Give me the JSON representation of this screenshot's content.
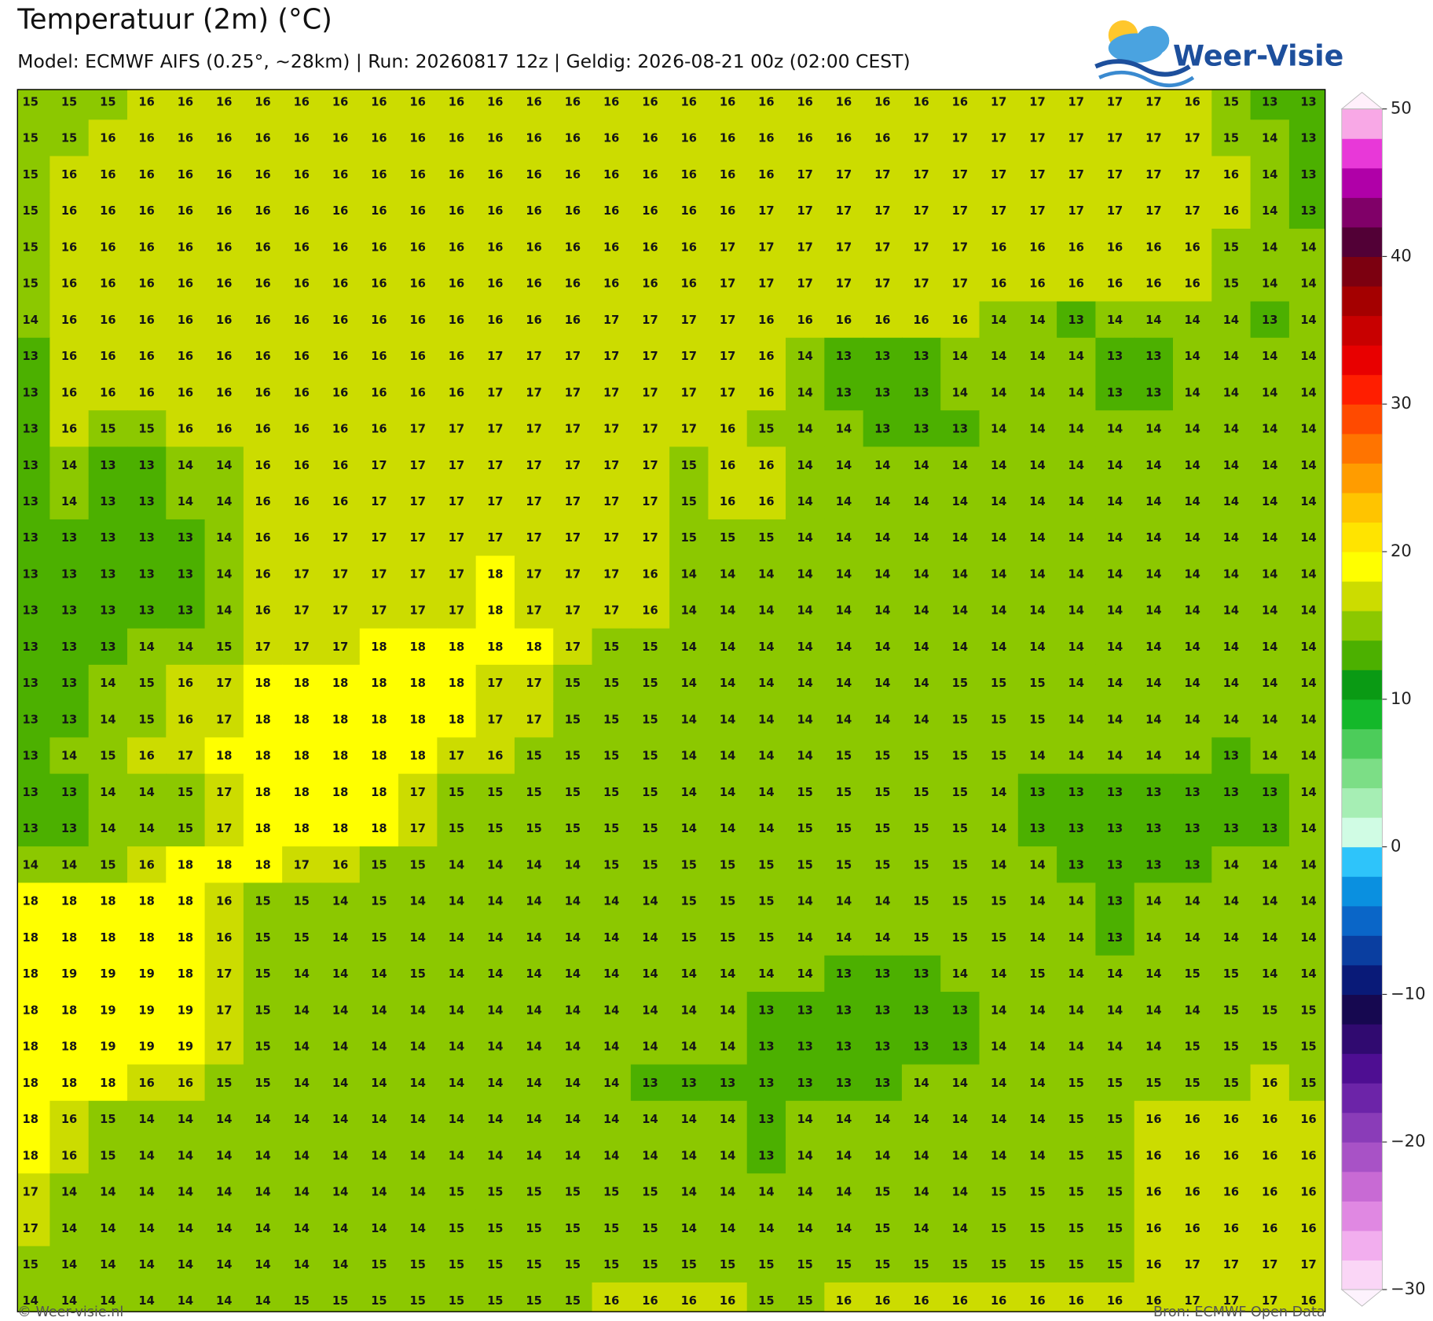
{
  "header": {
    "title": "Temperatuur (2m) (°C)",
    "subtitle": "Model: ECMWF AIFS (0.25°, ~28km)  |  Run: 20260817 12z  |  Geldig: 2026-08-21 00z (02:00 CEST)"
  },
  "logo": {
    "name": "Weer-Visie"
  },
  "map": {
    "rows": [
      [
        15,
        15,
        15,
        16,
        16,
        16,
        16,
        16,
        16,
        16,
        16,
        16,
        16,
        16,
        16,
        16,
        16,
        16,
        16,
        16,
        16,
        16,
        16,
        16,
        16,
        17,
        17,
        17,
        17,
        17,
        16,
        15,
        13,
        13
      ],
      [
        15,
        15,
        16,
        16,
        16,
        16,
        16,
        16,
        16,
        16,
        16,
        16,
        16,
        16,
        16,
        16,
        16,
        16,
        16,
        16,
        16,
        16,
        16,
        17,
        17,
        17,
        17,
        17,
        17,
        17,
        17,
        15,
        14,
        13
      ],
      [
        15,
        16,
        16,
        16,
        16,
        16,
        16,
        16,
        16,
        16,
        16,
        16,
        16,
        16,
        16,
        16,
        16,
        16,
        16,
        16,
        17,
        17,
        17,
        17,
        17,
        17,
        17,
        17,
        17,
        17,
        17,
        16,
        14,
        13
      ],
      [
        15,
        16,
        16,
        16,
        16,
        16,
        16,
        16,
        16,
        16,
        16,
        16,
        16,
        16,
        16,
        16,
        16,
        16,
        16,
        17,
        17,
        17,
        17,
        17,
        17,
        17,
        17,
        17,
        17,
        17,
        17,
        16,
        14,
        13
      ],
      [
        15,
        16,
        16,
        16,
        16,
        16,
        16,
        16,
        16,
        16,
        16,
        16,
        16,
        16,
        16,
        16,
        16,
        16,
        17,
        17,
        17,
        17,
        17,
        17,
        17,
        16,
        16,
        16,
        16,
        16,
        16,
        15,
        14,
        14
      ],
      [
        15,
        16,
        16,
        16,
        16,
        16,
        16,
        16,
        16,
        16,
        16,
        16,
        16,
        16,
        16,
        16,
        16,
        16,
        17,
        17,
        17,
        17,
        17,
        17,
        17,
        16,
        16,
        16,
        16,
        16,
        16,
        15,
        14,
        14
      ],
      [
        14,
        16,
        16,
        16,
        16,
        16,
        16,
        16,
        16,
        16,
        16,
        16,
        16,
        16,
        16,
        17,
        17,
        17,
        17,
        16,
        16,
        16,
        16,
        16,
        16,
        14,
        14,
        13,
        14,
        14,
        14,
        14,
        13,
        14
      ],
      [
        13,
        16,
        16,
        16,
        16,
        16,
        16,
        16,
        16,
        16,
        16,
        16,
        17,
        17,
        17,
        17,
        17,
        17,
        17,
        16,
        14,
        13,
        13,
        13,
        14,
        14,
        14,
        14,
        13,
        13,
        14,
        14,
        14,
        14
      ],
      [
        13,
        16,
        16,
        16,
        16,
        16,
        16,
        16,
        16,
        16,
        16,
        16,
        17,
        17,
        17,
        17,
        17,
        17,
        17,
        16,
        14,
        13,
        13,
        13,
        14,
        14,
        14,
        14,
        13,
        13,
        14,
        14,
        14,
        14
      ],
      [
        13,
        16,
        15,
        15,
        16,
        16,
        16,
        16,
        16,
        16,
        17,
        17,
        17,
        17,
        17,
        17,
        17,
        17,
        16,
        15,
        14,
        14,
        13,
        13,
        13,
        14,
        14,
        14,
        14,
        14,
        14,
        14,
        14,
        14
      ],
      [
        13,
        14,
        13,
        13,
        14,
        14,
        16,
        16,
        16,
        17,
        17,
        17,
        17,
        17,
        17,
        17,
        17,
        15,
        16,
        16,
        14,
        14,
        14,
        14,
        14,
        14,
        14,
        14,
        14,
        14,
        14,
        14,
        14,
        14
      ],
      [
        13,
        14,
        13,
        13,
        14,
        14,
        16,
        16,
        16,
        17,
        17,
        17,
        17,
        17,
        17,
        17,
        17,
        15,
        16,
        16,
        14,
        14,
        14,
        14,
        14,
        14,
        14,
        14,
        14,
        14,
        14,
        14,
        14,
        14
      ],
      [
        13,
        13,
        13,
        13,
        13,
        14,
        16,
        16,
        17,
        17,
        17,
        17,
        17,
        17,
        17,
        17,
        17,
        15,
        15,
        15,
        14,
        14,
        14,
        14,
        14,
        14,
        14,
        14,
        14,
        14,
        14,
        14,
        14,
        14
      ],
      [
        13,
        13,
        13,
        13,
        13,
        14,
        16,
        17,
        17,
        17,
        17,
        17,
        18,
        17,
        17,
        17,
        16,
        14,
        14,
        14,
        14,
        14,
        14,
        14,
        14,
        14,
        14,
        14,
        14,
        14,
        14,
        14,
        14,
        14
      ],
      [
        13,
        13,
        13,
        13,
        13,
        14,
        16,
        17,
        17,
        17,
        17,
        17,
        18,
        17,
        17,
        17,
        16,
        14,
        14,
        14,
        14,
        14,
        14,
        14,
        14,
        14,
        14,
        14,
        14,
        14,
        14,
        14,
        14,
        14
      ],
      [
        13,
        13,
        13,
        14,
        14,
        15,
        17,
        17,
        17,
        18,
        18,
        18,
        18,
        18,
        17,
        15,
        15,
        14,
        14,
        14,
        14,
        14,
        14,
        14,
        14,
        14,
        14,
        14,
        14,
        14,
        14,
        14,
        14,
        14
      ],
      [
        13,
        13,
        14,
        15,
        16,
        17,
        18,
        18,
        18,
        18,
        18,
        18,
        17,
        17,
        15,
        15,
        15,
        14,
        14,
        14,
        14,
        14,
        14,
        14,
        15,
        15,
        15,
        14,
        14,
        14,
        14,
        14,
        14,
        14
      ],
      [
        13,
        13,
        14,
        15,
        16,
        17,
        18,
        18,
        18,
        18,
        18,
        18,
        17,
        17,
        15,
        15,
        15,
        14,
        14,
        14,
        14,
        14,
        14,
        14,
        15,
        15,
        15,
        14,
        14,
        14,
        14,
        14,
        14,
        14
      ],
      [
        13,
        14,
        15,
        16,
        17,
        18,
        18,
        18,
        18,
        18,
        18,
        17,
        16,
        15,
        15,
        15,
        15,
        14,
        14,
        14,
        14,
        15,
        15,
        15,
        15,
        15,
        14,
        14,
        14,
        14,
        14,
        13,
        14,
        14
      ],
      [
        13,
        13,
        14,
        14,
        15,
        17,
        18,
        18,
        18,
        18,
        17,
        15,
        15,
        15,
        15,
        15,
        15,
        14,
        14,
        14,
        15,
        15,
        15,
        15,
        15,
        14,
        13,
        13,
        13,
        13,
        13,
        13,
        13,
        14
      ],
      [
        13,
        13,
        14,
        14,
        15,
        17,
        18,
        18,
        18,
        18,
        17,
        15,
        15,
        15,
        15,
        15,
        15,
        14,
        14,
        14,
        15,
        15,
        15,
        15,
        15,
        14,
        13,
        13,
        13,
        13,
        13,
        13,
        13,
        14
      ],
      [
        14,
        14,
        15,
        16,
        18,
        18,
        18,
        17,
        16,
        15,
        15,
        14,
        14,
        14,
        14,
        15,
        15,
        15,
        15,
        15,
        15,
        15,
        15,
        15,
        15,
        14,
        14,
        13,
        13,
        13,
        13,
        14,
        14,
        14
      ],
      [
        18,
        18,
        18,
        18,
        18,
        16,
        15,
        15,
        14,
        15,
        14,
        14,
        14,
        14,
        14,
        14,
        14,
        15,
        15,
        15,
        14,
        14,
        14,
        15,
        15,
        15,
        14,
        14,
        13,
        14,
        14,
        14,
        14,
        14
      ],
      [
        18,
        18,
        18,
        18,
        18,
        16,
        15,
        15,
        14,
        15,
        14,
        14,
        14,
        14,
        14,
        14,
        14,
        15,
        15,
        15,
        14,
        14,
        14,
        15,
        15,
        15,
        14,
        14,
        13,
        14,
        14,
        14,
        14,
        14
      ],
      [
        18,
        19,
        19,
        19,
        18,
        17,
        15,
        14,
        14,
        14,
        15,
        14,
        14,
        14,
        14,
        14,
        14,
        14,
        14,
        14,
        14,
        13,
        13,
        13,
        14,
        14,
        15,
        14,
        14,
        14,
        15,
        15,
        14,
        14
      ],
      [
        18,
        18,
        19,
        19,
        19,
        17,
        15,
        14,
        14,
        14,
        14,
        14,
        14,
        14,
        14,
        14,
        14,
        14,
        14,
        13,
        13,
        13,
        13,
        13,
        13,
        14,
        14,
        14,
        14,
        14,
        14,
        15,
        15,
        15
      ],
      [
        18,
        18,
        19,
        19,
        19,
        17,
        15,
        14,
        14,
        14,
        14,
        14,
        14,
        14,
        14,
        14,
        14,
        14,
        14,
        13,
        13,
        13,
        13,
        13,
        13,
        14,
        14,
        14,
        14,
        14,
        15,
        15,
        15,
        15
      ],
      [
        18,
        18,
        18,
        16,
        16,
        15,
        15,
        14,
        14,
        14,
        14,
        14,
        14,
        14,
        14,
        14,
        13,
        13,
        13,
        13,
        13,
        13,
        13,
        14,
        14,
        14,
        14,
        15,
        15,
        15,
        15,
        15,
        16,
        15
      ],
      [
        18,
        16,
        15,
        14,
        14,
        14,
        14,
        14,
        14,
        14,
        14,
        14,
        14,
        14,
        14,
        14,
        14,
        14,
        14,
        13,
        14,
        14,
        14,
        14,
        14,
        14,
        14,
        15,
        15,
        16,
        16,
        16,
        16,
        16
      ],
      [
        18,
        16,
        15,
        14,
        14,
        14,
        14,
        14,
        14,
        14,
        14,
        14,
        14,
        14,
        14,
        14,
        14,
        14,
        14,
        13,
        14,
        14,
        14,
        14,
        14,
        14,
        14,
        15,
        15,
        16,
        16,
        16,
        16,
        16
      ],
      [
        17,
        14,
        14,
        14,
        14,
        14,
        14,
        14,
        14,
        14,
        14,
        15,
        15,
        15,
        15,
        15,
        15,
        14,
        14,
        14,
        14,
        14,
        15,
        14,
        14,
        15,
        15,
        15,
        15,
        16,
        16,
        16,
        16,
        16
      ],
      [
        17,
        14,
        14,
        14,
        14,
        14,
        14,
        14,
        14,
        14,
        14,
        15,
        15,
        15,
        15,
        15,
        15,
        14,
        14,
        14,
        14,
        14,
        15,
        14,
        14,
        15,
        15,
        15,
        15,
        16,
        16,
        16,
        16,
        16
      ],
      [
        15,
        14,
        14,
        14,
        14,
        14,
        14,
        14,
        14,
        15,
        15,
        15,
        15,
        15,
        15,
        15,
        15,
        15,
        15,
        15,
        15,
        15,
        15,
        15,
        15,
        15,
        15,
        15,
        15,
        16,
        17,
        17,
        17,
        17
      ],
      [
        14,
        14,
        14,
        14,
        14,
        14,
        14,
        15,
        15,
        15,
        15,
        15,
        15,
        15,
        15,
        16,
        16,
        16,
        16,
        15,
        15,
        16,
        16,
        16,
        16,
        16,
        16,
        16,
        16,
        16,
        17,
        17,
        17,
        16
      ]
    ]
  },
  "colorbar": {
    "ticks": [
      50,
      40,
      30,
      20,
      10,
      0,
      {
        "value": -10,
        "label": "−10"
      },
      {
        "value": -20,
        "label": "−20"
      },
      {
        "value": -30,
        "label": "−30"
      }
    ]
  },
  "footer": {
    "left": "© Weer-visie.nl",
    "right": "Bron: ECMWF Open Data"
  }
}
